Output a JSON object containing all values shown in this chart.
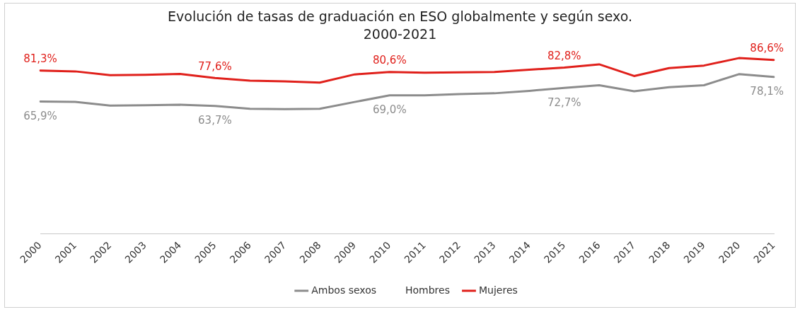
{
  "chart_data": {
    "type": "line",
    "title": "Evolución de tasas de graduación en ESO globalmente y según sexo.\n2000-2021",
    "categories": [
      "2000",
      "2001",
      "2002",
      "2003",
      "2004",
      "2005",
      "2006",
      "2007",
      "2008",
      "2009",
      "2010",
      "2011",
      "2012",
      "2013",
      "2014",
      "2015",
      "2016",
      "2017",
      "2018",
      "2019",
      "2020",
      "2021"
    ],
    "series": [
      {
        "name": "Ambos sexos",
        "color": "#8c8c8c",
        "values": [
          65.9,
          65.7,
          63.9,
          64.1,
          64.3,
          63.7,
          62.3,
          62.1,
          62.3,
          65.7,
          69.0,
          69.0,
          69.6,
          70.0,
          71.2,
          72.7,
          74.0,
          71.0,
          73.0,
          74.0,
          79.5,
          78.1
        ],
        "value_labels": [
          "65,9%",
          null,
          null,
          null,
          null,
          "63,7%",
          null,
          null,
          null,
          null,
          "69,0%",
          null,
          null,
          null,
          null,
          "72,7%",
          null,
          null,
          null,
          null,
          null,
          "78,1%"
        ]
      },
      {
        "name": "Hombres",
        "values": [
          null,
          null,
          null,
          null,
          null,
          null,
          null,
          null,
          null,
          null,
          null,
          null,
          null,
          null,
          null,
          null,
          null,
          null,
          null,
          null,
          null,
          null
        ]
      },
      {
        "name": "Mujeres",
        "color": "#e0201b",
        "values": [
          81.3,
          80.9,
          79.0,
          79.2,
          79.6,
          77.6,
          76.3,
          75.9,
          75.3,
          79.4,
          80.6,
          80.2,
          80.4,
          80.6,
          81.7,
          82.8,
          84.4,
          78.6,
          82.5,
          83.8,
          87.5,
          86.6
        ],
        "value_labels": [
          "81,3%",
          null,
          null,
          null,
          null,
          "77,6%",
          null,
          null,
          null,
          null,
          "80,6%",
          null,
          null,
          null,
          null,
          "82,8%",
          null,
          null,
          null,
          null,
          null,
          "86,6%"
        ]
      }
    ],
    "tick_labels": "x",
    "grid": false,
    "legend": "bottom",
    "marker": "none",
    "line_style": "solid"
  }
}
